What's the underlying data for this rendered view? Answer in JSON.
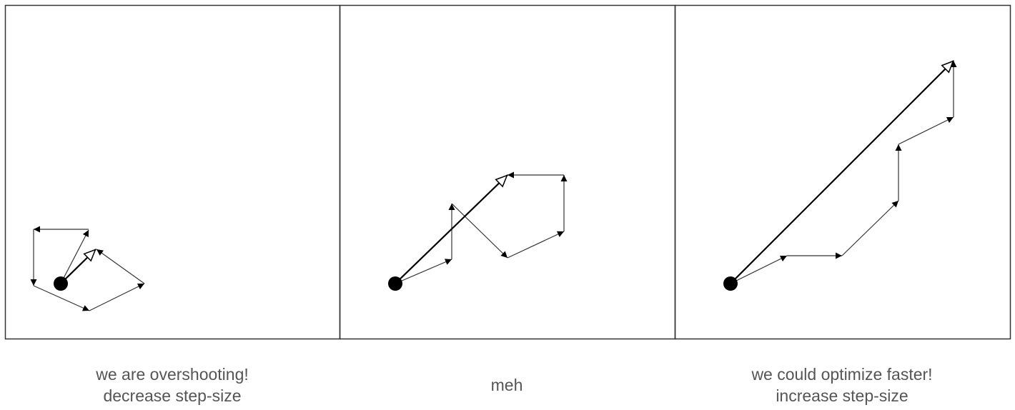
{
  "panels": [
    {
      "id": "overshooting",
      "caption_lines": [
        "we are overshooting!",
        "decrease step-size"
      ]
    },
    {
      "id": "meh",
      "caption_lines": [
        "meh"
      ]
    },
    {
      "id": "faster",
      "caption_lines": [
        "we could optimize faster!",
        "increase step-size"
      ]
    }
  ],
  "colors": {
    "frame": "#333333",
    "path": "#333333",
    "start_point": "#000000",
    "caption_text": "#555555"
  },
  "icons": {
    "start": "filled-circle",
    "step": "filled-arrowhead",
    "net_step": "hollow-arrowhead"
  }
}
